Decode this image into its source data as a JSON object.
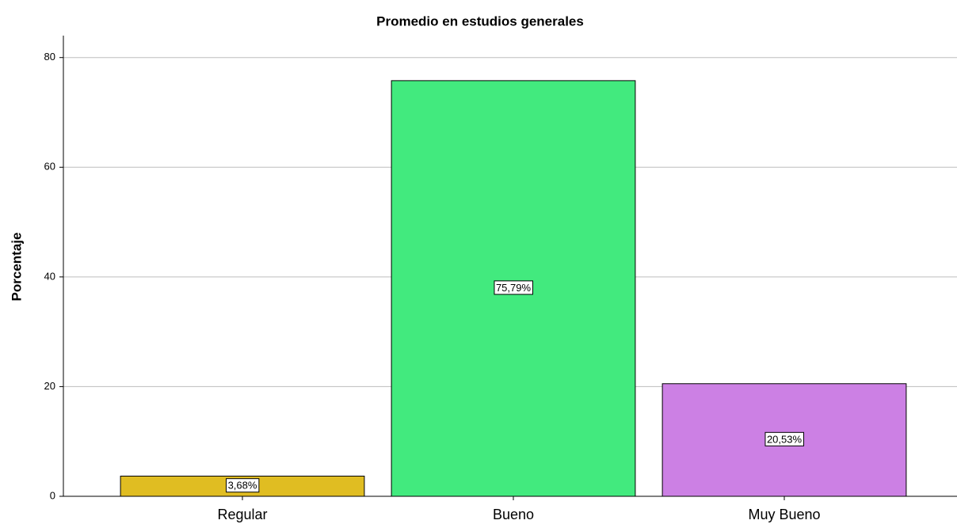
{
  "chart_data": {
    "type": "bar",
    "title": "Promedio en estudios generales",
    "y_label": "Porcentaje",
    "categories": [
      "Regular",
      "Bueno",
      "Muy Bueno"
    ],
    "values": [
      3.68,
      75.79,
      20.53
    ],
    "value_labels": [
      "3,68%",
      "75,79%",
      "20,53%"
    ],
    "colors": [
      "#e0bd22",
      "#42ea7e",
      "#cc80e4"
    ],
    "ylim": [
      0,
      84
    ],
    "yticks": [
      0,
      20,
      40,
      60,
      80
    ],
    "grid": true
  }
}
